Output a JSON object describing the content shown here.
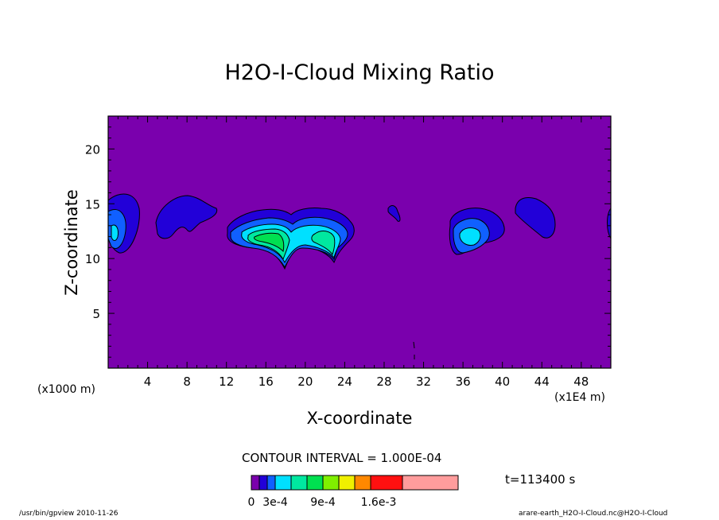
{
  "chart_data": {
    "type": "heatmap",
    "title": "H2O-I-Cloud Mixing Ratio",
    "xlabel": "X-coordinate",
    "ylabel": "Z-coordinate",
    "x_unit_label": "(x1000 m)",
    "x_scale_label": "(x1E4 m)",
    "xlim": [
      0,
      51
    ],
    "ylim": [
      0,
      23
    ],
    "xticks": [
      "4",
      "8",
      "12",
      "16",
      "20",
      "24",
      "28",
      "32",
      "36",
      "40",
      "44",
      "48"
    ],
    "yticks": [
      "5",
      "10",
      "15",
      "20"
    ],
    "contour_interval": "CONTOUR INTERVAL = 1.000E-04",
    "time_label": "t=113400 s",
    "colorbar_labels": [
      "0",
      "3e-4",
      "9e-4",
      "1.6e-3"
    ],
    "colorbar_colors": [
      "#7a00ad",
      "#2200d8",
      "#1060ff",
      "#00e0ff",
      "#00e8a0",
      "#00e050",
      "#80f000",
      "#f0f000",
      "#ff8800",
      "#ff1010",
      "#ff9c9c"
    ],
    "background_color": "#7a00ad",
    "features": [
      {
        "x": 1.2,
        "z": 13.0,
        "max_level": "4e-4"
      },
      {
        "x": 8.2,
        "z": 13.8,
        "max_level": "1e-4"
      },
      {
        "x": 16.5,
        "z": 12.0,
        "max_level": "9e-4"
      },
      {
        "x": 21.5,
        "z": 12.3,
        "max_level": "6e-4"
      },
      {
        "x": 28.8,
        "z": 14.0,
        "max_level": "1e-4"
      },
      {
        "x": 36.8,
        "z": 12.0,
        "max_level": "4e-4"
      },
      {
        "x": 43.8,
        "z": 14.0,
        "max_level": "1e-4"
      },
      {
        "x": 51.0,
        "z": 13.2,
        "max_level": "1e-4"
      }
    ]
  },
  "footer_left": "/usr/bin/gpview   2010-11-26",
  "footer_right": "arare-earth_H2O-I-Cloud.nc@H2O-I-Cloud"
}
